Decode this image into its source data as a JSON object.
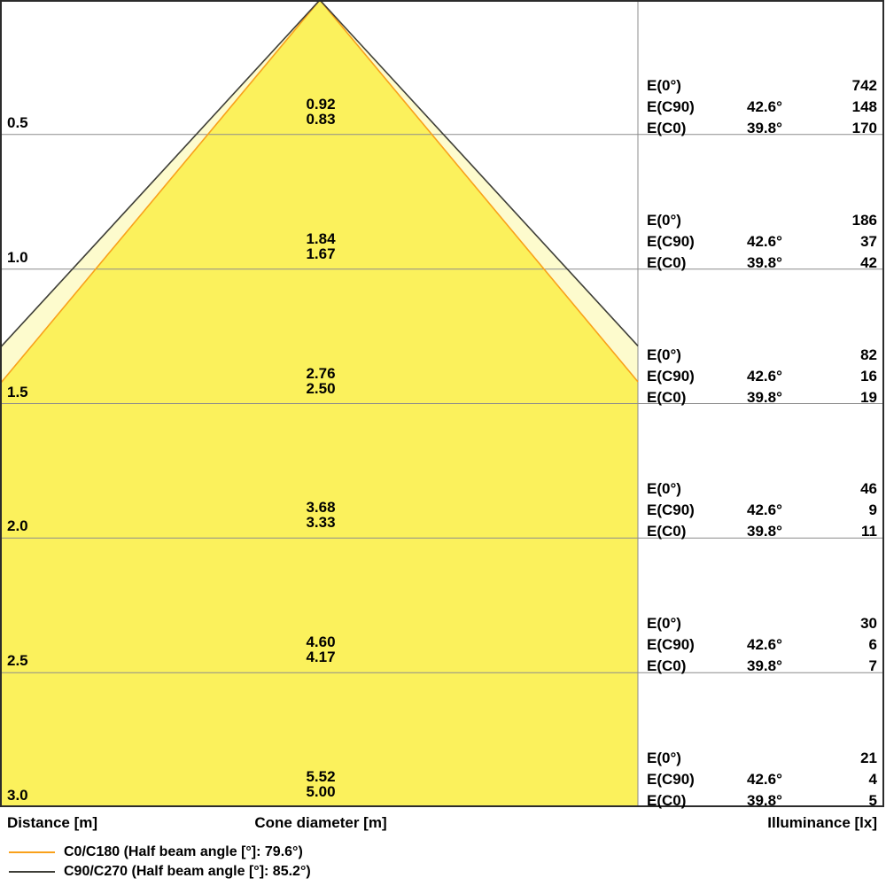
{
  "chart_data": {
    "type": "area",
    "subtype": "illuminance-cone-diagram",
    "axes": {
      "distance_label": "Distance [m]",
      "cone_diameter_label": "Cone diameter [m]",
      "illuminance_label": "Illuminance [lx]"
    },
    "labels": {
      "e0": "E(0°)",
      "ec90": "E(C90)",
      "ec0": "E(C0)",
      "angle_c90": "42.6°",
      "angle_c0": "39.8°"
    },
    "cone": {
      "half_angle_c90_deg": 42.6,
      "half_angle_c0_deg": 39.8,
      "full_beam_angle_c90_deg": 85.2,
      "full_beam_angle_c0_deg": 79.6
    },
    "rows": [
      {
        "distance": "0.5",
        "diameter_c90": "0.92",
        "diameter_c0": "0.83",
        "e0": "742",
        "ec90": "148",
        "ec0": "170"
      },
      {
        "distance": "1.0",
        "diameter_c90": "1.84",
        "diameter_c0": "1.67",
        "e0": "186",
        "ec90": "37",
        "ec0": "42"
      },
      {
        "distance": "1.5",
        "diameter_c90": "2.76",
        "diameter_c0": "2.50",
        "e0": "82",
        "ec90": "16",
        "ec0": "19"
      },
      {
        "distance": "2.0",
        "diameter_c90": "3.68",
        "diameter_c0": "3.33",
        "e0": "46",
        "ec90": "9",
        "ec0": "11"
      },
      {
        "distance": "2.5",
        "diameter_c90": "4.60",
        "diameter_c0": "4.17",
        "e0": "30",
        "ec90": "6",
        "ec0": "7"
      },
      {
        "distance": "3.0",
        "diameter_c90": "5.52",
        "diameter_c0": "5.00",
        "e0": "21",
        "ec90": "4",
        "ec0": "5"
      }
    ],
    "legend": [
      {
        "series": "C0/C180",
        "label": "C0/C180 (Half beam angle [°]: 79.6°)",
        "color": "#F9A11B"
      },
      {
        "series": "C90/C270",
        "label": "C90/C270 (Half beam angle [°]: 85.2°)",
        "color": "#3E3E38"
      }
    ],
    "colors": {
      "fill_c0": "#FBF15C",
      "fill_c90": "#FDFBCD",
      "line_c0": "#F9A11B",
      "line_c90": "#3E3E38",
      "grid": "#8C8C8C",
      "border": "#2B2B2B"
    }
  }
}
